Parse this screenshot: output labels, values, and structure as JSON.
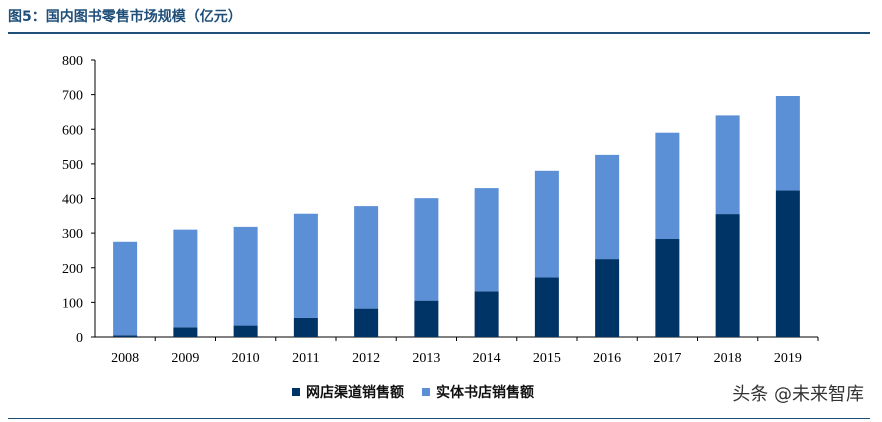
{
  "header": {
    "title": "图5：国内图书零售市场规模（亿元）"
  },
  "watermark": {
    "text": "头条 @未来智库"
  },
  "chart_data": {
    "type": "bar",
    "stacked": true,
    "categories": [
      "2008",
      "2009",
      "2010",
      "2011",
      "2012",
      "2013",
      "2014",
      "2015",
      "2016",
      "2017",
      "2018",
      "2019"
    ],
    "series": [
      {
        "name": "网店渠道销售额",
        "color": "#003366",
        "values": [
          5,
          28,
          33,
          55,
          82,
          105,
          132,
          172,
          225,
          283,
          355,
          423
        ]
      },
      {
        "name": "实体书店销售额",
        "color": "#5b8fd6",
        "values": [
          270,
          282,
          285,
          301,
          296,
          296,
          298,
          308,
          301,
          307,
          285,
          273
        ]
      }
    ],
    "y_ticks": [
      0,
      100,
      200,
      300,
      400,
      500,
      600,
      700,
      800
    ],
    "ylim": [
      0,
      800
    ],
    "grid": false,
    "legend_position": "bottom"
  }
}
